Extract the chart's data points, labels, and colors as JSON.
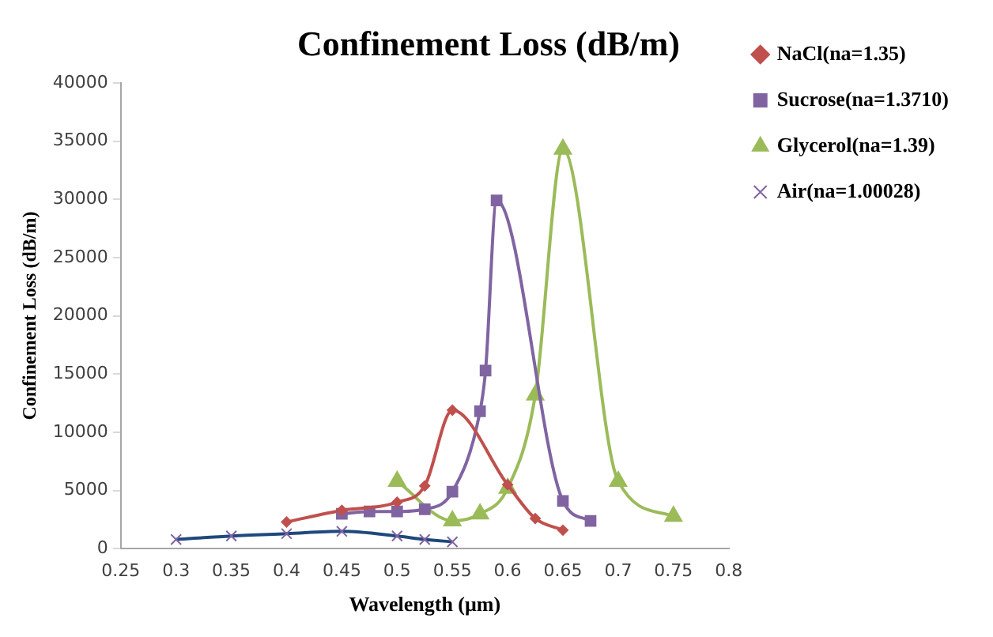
{
  "chart_data": {
    "type": "line",
    "title": "Confinement Loss (dB/m)",
    "xlabel": "Wavelength (μm)",
    "ylabel": "Confinement Loss (dB/m)",
    "xlim": [
      0.25,
      0.8
    ],
    "xticks": [
      0.25,
      0.3,
      0.35,
      0.4,
      0.45,
      0.5,
      0.55,
      0.6,
      0.65,
      0.7,
      0.75,
      0.8
    ],
    "ylim": [
      0,
      40000
    ],
    "yticks": [
      0,
      5000,
      10000,
      15000,
      20000,
      25000,
      30000,
      35000,
      40000
    ],
    "grid": false,
    "legend": "top right",
    "series": [
      {
        "name": "NaCl(na=1.35)",
        "color": "#c0504d",
        "marker": "diamond",
        "x": [
          0.4,
          0.45,
          0.5,
          0.525,
          0.55,
          0.6,
          0.625,
          0.65
        ],
        "values": [
          2300,
          3300,
          4000,
          5400,
          11900,
          5500,
          2600,
          1600
        ]
      },
      {
        "name": "Sucrose(na=1.3710)",
        "color": "#8064a2",
        "marker": "square",
        "x": [
          0.45,
          0.475,
          0.5,
          0.525,
          0.55,
          0.575,
          0.58,
          0.59,
          0.65,
          0.675
        ],
        "values": [
          3000,
          3200,
          3200,
          3400,
          4900,
          11800,
          15300,
          29900,
          4100,
          2400
        ]
      },
      {
        "name": "Glycerol(na=1.39)",
        "color": "#9bbb59",
        "marker": "triangle",
        "x": [
          0.5,
          0.55,
          0.575,
          0.6,
          0.625,
          0.65,
          0.7,
          0.75
        ],
        "values": [
          5800,
          2400,
          3000,
          5200,
          13200,
          34300,
          5800,
          2800
        ]
      },
      {
        "name": "Air(na=1.00028)",
        "color": "#1f497d",
        "marker": "cross",
        "x": [
          0.3,
          0.35,
          0.4,
          0.45,
          0.5,
          0.525,
          0.55
        ],
        "values": [
          800,
          1100,
          1300,
          1500,
          1100,
          800,
          600
        ]
      }
    ]
  }
}
